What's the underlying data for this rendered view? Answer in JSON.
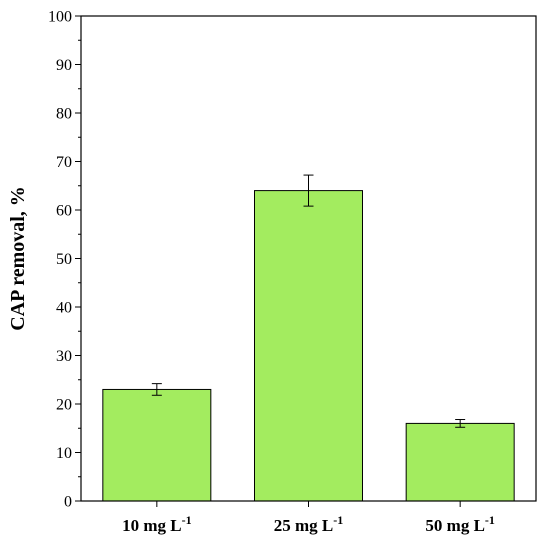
{
  "chart_data": {
    "type": "bar",
    "categories": [
      {
        "base": "10 mg L",
        "sup": "-1"
      },
      {
        "base": "25 mg L",
        "sup": "-1"
      },
      {
        "base": "50 mg L",
        "sup": "-1"
      }
    ],
    "values": [
      23,
      64,
      16
    ],
    "errors": [
      1.2,
      3.2,
      0.8
    ],
    "xlabel": "",
    "ylabel": "CAP removal, %",
    "ylim": [
      0,
      100
    ],
    "yticks": [
      0,
      10,
      20,
      30,
      40,
      50,
      60,
      70,
      80,
      90,
      100
    ],
    "grid": false,
    "legend": "none",
    "colors": {
      "bar": "#a3ec5f",
      "bar_edge": "#000000",
      "axis": "#000000"
    }
  }
}
